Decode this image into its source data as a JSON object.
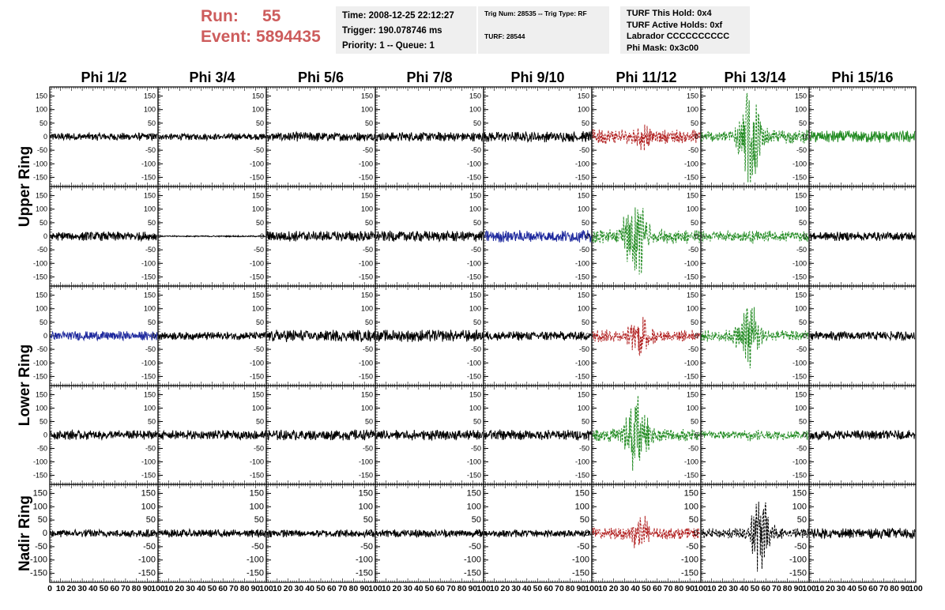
{
  "header": {
    "run_label": "Run:",
    "run_value": "55",
    "event_label": "Event:",
    "event_value": "5894435",
    "time": "Time: 2008-12-25 22:12:27",
    "trigger": "Trigger: 190.078746 ms",
    "priority": "Priority: 1 -- Queue: 1",
    "trig_num": "Trig Num: 28535 -- Trig Type: RF",
    "turf": "TURF: 28544",
    "turf_this_hold": "TURF This Hold: 0x4",
    "turf_active_holds": "TURF Active Holds: 0xf",
    "labrador": "Labrador CCCCCCCCCC",
    "phi_mask": "Phi Mask: 0x3c00"
  },
  "chart_data": {
    "type": "line",
    "columns": [
      "Phi 1/2",
      "Phi 3/4",
      "Phi 5/6",
      "Phi 7/8",
      "Phi 9/10",
      "Phi 11/12",
      "Phi 13/14",
      "Phi 15/16"
    ],
    "rings": [
      "Upper Ring",
      "Lower Ring",
      "Nadir Ring"
    ],
    "rows": 5,
    "y_ticks": [
      150,
      100,
      50,
      0,
      -50,
      -100,
      -150
    ],
    "ylim": [
      -175,
      175
    ],
    "x_ticks": [
      0,
      10,
      20,
      30,
      40,
      50,
      60,
      70,
      80,
      90,
      100
    ],
    "xlim": [
      0,
      100
    ],
    "colors": {
      "black": "#000000",
      "red": "#b22222",
      "green": "#228b22",
      "blue": "#1f2a9e"
    },
    "panels": [
      [
        {
          "color": "black",
          "amp": 12,
          "dash": false
        },
        {
          "color": "black",
          "amp": 10,
          "dash": false
        },
        {
          "color": "black",
          "amp": 14,
          "dash": false
        },
        {
          "color": "black",
          "amp": 14,
          "dash": false
        },
        {
          "color": "black",
          "amp": 16,
          "dash": false
        },
        {
          "color": "red",
          "amp": 22,
          "dash": true,
          "burst": 30,
          "burst_center": 45
        },
        {
          "color": "green",
          "amp": 20,
          "dash": true,
          "burst": 140,
          "burst_center": 45
        },
        {
          "color": "green",
          "amp": 18,
          "dash": false
        }
      ],
      [
        {
          "color": "black",
          "amp": 14,
          "dash": false
        },
        {
          "color": "black",
          "amp": 2,
          "dash": false
        },
        {
          "color": "black",
          "amp": 16,
          "dash": false
        },
        {
          "color": "black",
          "amp": 16,
          "dash": false
        },
        {
          "color": "blue",
          "amp": 18,
          "dash": false
        },
        {
          "color": "green",
          "amp": 22,
          "dash": true,
          "burst": 120,
          "burst_center": 40
        },
        {
          "color": "green",
          "amp": 16,
          "dash": true,
          "burst": 20,
          "burst_center": 50
        },
        {
          "color": "black",
          "amp": 14,
          "dash": false
        }
      ],
      [
        {
          "color": "blue",
          "amp": 14,
          "dash": false
        },
        {
          "color": "black",
          "amp": 12,
          "dash": false
        },
        {
          "color": "black",
          "amp": 18,
          "dash": false
        },
        {
          "color": "black",
          "amp": 18,
          "dash": false
        },
        {
          "color": "black",
          "amp": 14,
          "dash": false
        },
        {
          "color": "red",
          "amp": 18,
          "dash": true,
          "burst": 50,
          "burst_center": 45
        },
        {
          "color": "green",
          "amp": 18,
          "dash": true,
          "burst": 90,
          "burst_center": 45
        },
        {
          "color": "black",
          "amp": 14,
          "dash": false
        }
      ],
      [
        {
          "color": "black",
          "amp": 14,
          "dash": false
        },
        {
          "color": "black",
          "amp": 14,
          "dash": false
        },
        {
          "color": "black",
          "amp": 16,
          "dash": false
        },
        {
          "color": "black",
          "amp": 16,
          "dash": false
        },
        {
          "color": "black",
          "amp": 16,
          "dash": false
        },
        {
          "color": "green",
          "amp": 20,
          "dash": true,
          "burst": 110,
          "burst_center": 40
        },
        {
          "color": "green",
          "amp": 14,
          "dash": true,
          "burst": 10,
          "burst_center": 50
        },
        {
          "color": "black",
          "amp": 14,
          "dash": false
        }
      ],
      [
        {
          "color": "black",
          "amp": 12,
          "dash": false
        },
        {
          "color": "black",
          "amp": 12,
          "dash": false
        },
        {
          "color": "black",
          "amp": 12,
          "dash": false
        },
        {
          "color": "black",
          "amp": 12,
          "dash": false
        },
        {
          "color": "black",
          "amp": 12,
          "dash": false
        },
        {
          "color": "red",
          "amp": 18,
          "dash": true,
          "burst": 40,
          "burst_center": 45
        },
        {
          "color": "black",
          "amp": 16,
          "dash": true,
          "burst": 90,
          "burst_center": 55
        },
        {
          "color": "black",
          "amp": 16,
          "dash": false
        }
      ]
    ]
  }
}
